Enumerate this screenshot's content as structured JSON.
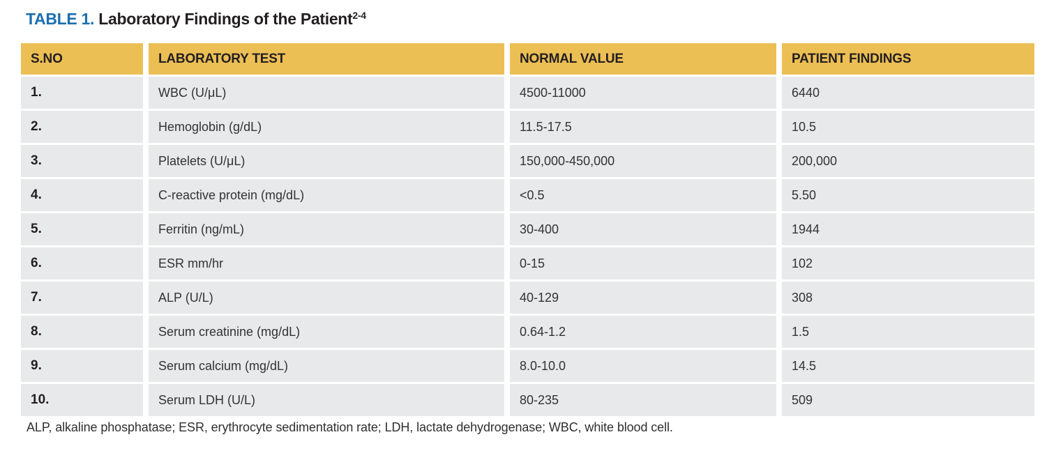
{
  "title": {
    "label": "TABLE 1.",
    "text": " Laboratory Findings of the Patient",
    "superscript": "2-4"
  },
  "table": {
    "headers": [
      "S.NO",
      "LABORATORY TEST",
      "NORMAL VALUE",
      "PATIENT FINDINGS"
    ],
    "rows": [
      {
        "sno": "1.",
        "test": "WBC (U/μL)",
        "normal": "4500-11000",
        "patient": "6440"
      },
      {
        "sno": "2.",
        "test": "Hemoglobin (g/dL)",
        "normal": "11.5-17.5",
        "patient": "10.5"
      },
      {
        "sno": "3.",
        "test": "Platelets (U/μL)",
        "normal": "150,000-450,000",
        "patient": "200,000"
      },
      {
        "sno": "4.",
        "test": "C-reactive protein (mg/dL)",
        "normal": "<0.5",
        "patient": "5.50"
      },
      {
        "sno": "5.",
        "test": "Ferritin (ng/mL)",
        "normal": "30-400",
        "patient": "1944"
      },
      {
        "sno": "6.",
        "test": "ESR mm/hr",
        "normal": "0-15",
        "patient": "102"
      },
      {
        "sno": "7.",
        "test": "ALP (U/L)",
        "normal": "40-129",
        "patient": "308"
      },
      {
        "sno": "8.",
        "test": "Serum creatinine (mg/dL)",
        "normal": "0.64-1.2",
        "patient": "1.5"
      },
      {
        "sno": "9.",
        "test": "Serum calcium (mg/dL)",
        "normal": "8.0-10.0",
        "patient": "14.5"
      },
      {
        "sno": "10.",
        "test": "Serum LDH (U/L)",
        "normal": "80-235",
        "patient": "509"
      }
    ],
    "footnote": "ALP, alkaline phosphatase; ESR, erythrocyte sedimentation rate; LDH, lactate dehydrogenase; WBC, white blood cell."
  },
  "colors": {
    "header_bg": "#ECBF55",
    "row_bg": "#E8E9EA",
    "title_accent": "#1B6FAE",
    "text": "#231F20"
  }
}
